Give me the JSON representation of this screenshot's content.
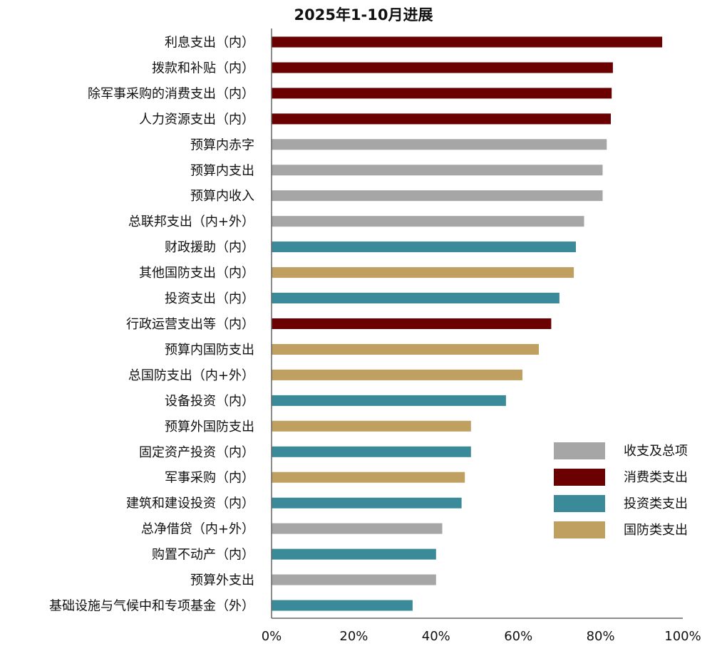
{
  "chart_data": {
    "type": "bar",
    "orientation": "horizontal",
    "title": "2025年1-10月进展",
    "xlabel": "",
    "ylabel": "",
    "xlim": [
      0,
      100
    ],
    "x_ticks": [
      {
        "value": 0,
        "label": "0%"
      },
      {
        "value": 20,
        "label": "20%"
      },
      {
        "value": 40,
        "label": "40%"
      },
      {
        "value": 60,
        "label": "60%"
      },
      {
        "value": 80,
        "label": "80%"
      },
      {
        "value": 100,
        "label": "100%"
      }
    ],
    "grid": false,
    "legend_position": "bottom-right",
    "groups": [
      {
        "key": "summary",
        "name": "收支及总项",
        "color": "#A6A6A6"
      },
      {
        "key": "consumption",
        "name": "消费类支出",
        "color": "#6B0000"
      },
      {
        "key": "investment",
        "name": "投资类支出",
        "color": "#3A8A9A"
      },
      {
        "key": "defense",
        "name": "国防类支出",
        "color": "#BFA060"
      }
    ],
    "bars": [
      {
        "category": "利息支出（内）",
        "value": 95,
        "group": "consumption"
      },
      {
        "category": "拨款和补贴（内）",
        "value": 83,
        "group": "consumption"
      },
      {
        "category": "除军事采购的消费支出（内）",
        "value": 82.7,
        "group": "consumption"
      },
      {
        "category": "人力资源支出（内）",
        "value": 82.5,
        "group": "consumption"
      },
      {
        "category": "预算内赤字",
        "value": 81.5,
        "group": "summary"
      },
      {
        "category": "预算内支出",
        "value": 80.5,
        "group": "summary"
      },
      {
        "category": "预算内收入",
        "value": 80.5,
        "group": "summary"
      },
      {
        "category": "总联邦支出（内+外）",
        "value": 76,
        "group": "summary"
      },
      {
        "category": "财政援助（内）",
        "value": 74,
        "group": "investment"
      },
      {
        "category": "其他国防支出（内）",
        "value": 73.5,
        "group": "defense"
      },
      {
        "category": "投资支出（内）",
        "value": 70,
        "group": "investment"
      },
      {
        "category": "行政运营支出等（内）",
        "value": 68,
        "group": "consumption"
      },
      {
        "category": "预算内国防支出",
        "value": 65,
        "group": "defense"
      },
      {
        "category": "总国防支出（内+外）",
        "value": 61,
        "group": "defense"
      },
      {
        "category": "设备投资（内）",
        "value": 57,
        "group": "investment"
      },
      {
        "category": "预算外国防支出",
        "value": 48.5,
        "group": "defense"
      },
      {
        "category": "固定资产投资（内）",
        "value": 48.5,
        "group": "investment"
      },
      {
        "category": "军事采购（内）",
        "value": 47,
        "group": "defense"
      },
      {
        "category": "建筑和建设投资（内）",
        "value": 46.2,
        "group": "investment"
      },
      {
        "category": "总净借贷（内+外）",
        "value": 41.5,
        "group": "summary"
      },
      {
        "category": "购置不动产（内）",
        "value": 40,
        "group": "investment"
      },
      {
        "category": "预算外支出",
        "value": 40,
        "group": "summary"
      },
      {
        "category": "基础设施与气候中和专项基金（外）",
        "value": 34.3,
        "group": "investment"
      }
    ]
  }
}
